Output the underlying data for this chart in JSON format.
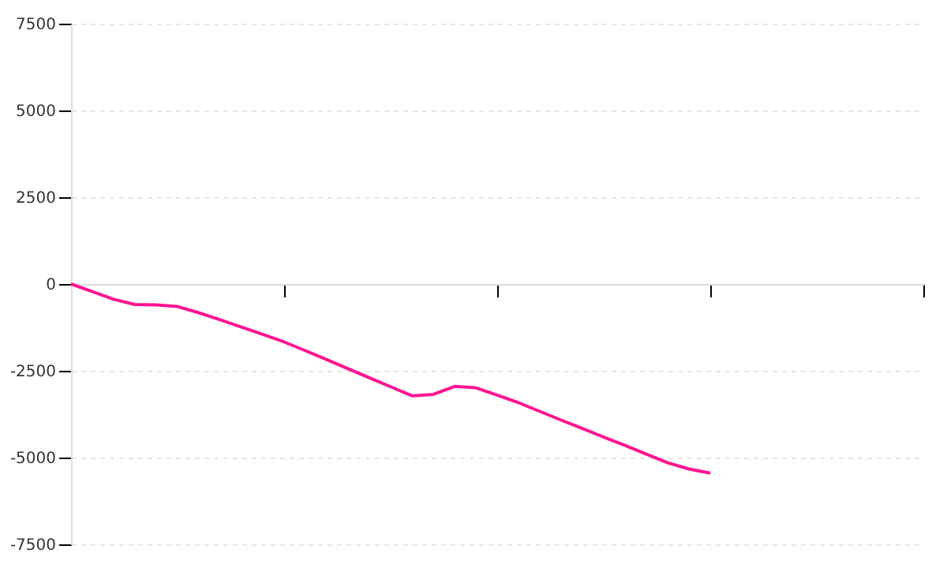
{
  "chart_data": {
    "type": "line",
    "categories": [
      null,
      null,
      null,
      null,
      null,
      null,
      null,
      null,
      null,
      null,
      null,
      null,
      null,
      null,
      null,
      null,
      null,
      null,
      null,
      null,
      null,
      null,
      null,
      null,
      null,
      null,
      null,
      null,
      null,
      null,
      null,
      null,
      null,
      null,
      null,
      null,
      null,
      null,
      null,
      null,
      null
    ],
    "series": [
      {
        "color": "#ff1493",
        "values": [
          0,
          -220,
          -440,
          -590,
          -600,
          -650,
          -830,
          -1030,
          -1240,
          -1450,
          -1670,
          -1920,
          -2180,
          -2440,
          -2700,
          -2960,
          -3220,
          -3180,
          -2950,
          -2990,
          -3200,
          -3420,
          -3670,
          -3920,
          -4160,
          -4410,
          -4650,
          -4900,
          -5150,
          -5330,
          -5450,
          null,
          null,
          null,
          null,
          null,
          null,
          null,
          null,
          null,
          null
        ]
      }
    ],
    "ylim": [
      -7500,
      7500
    ],
    "yticks": [
      -7500,
      -5000,
      -2500,
      0,
      2500,
      5000,
      7500
    ],
    "grid": "y",
    "tick_labels": "y",
    "marker": "none",
    "line_style": "solid"
  }
}
